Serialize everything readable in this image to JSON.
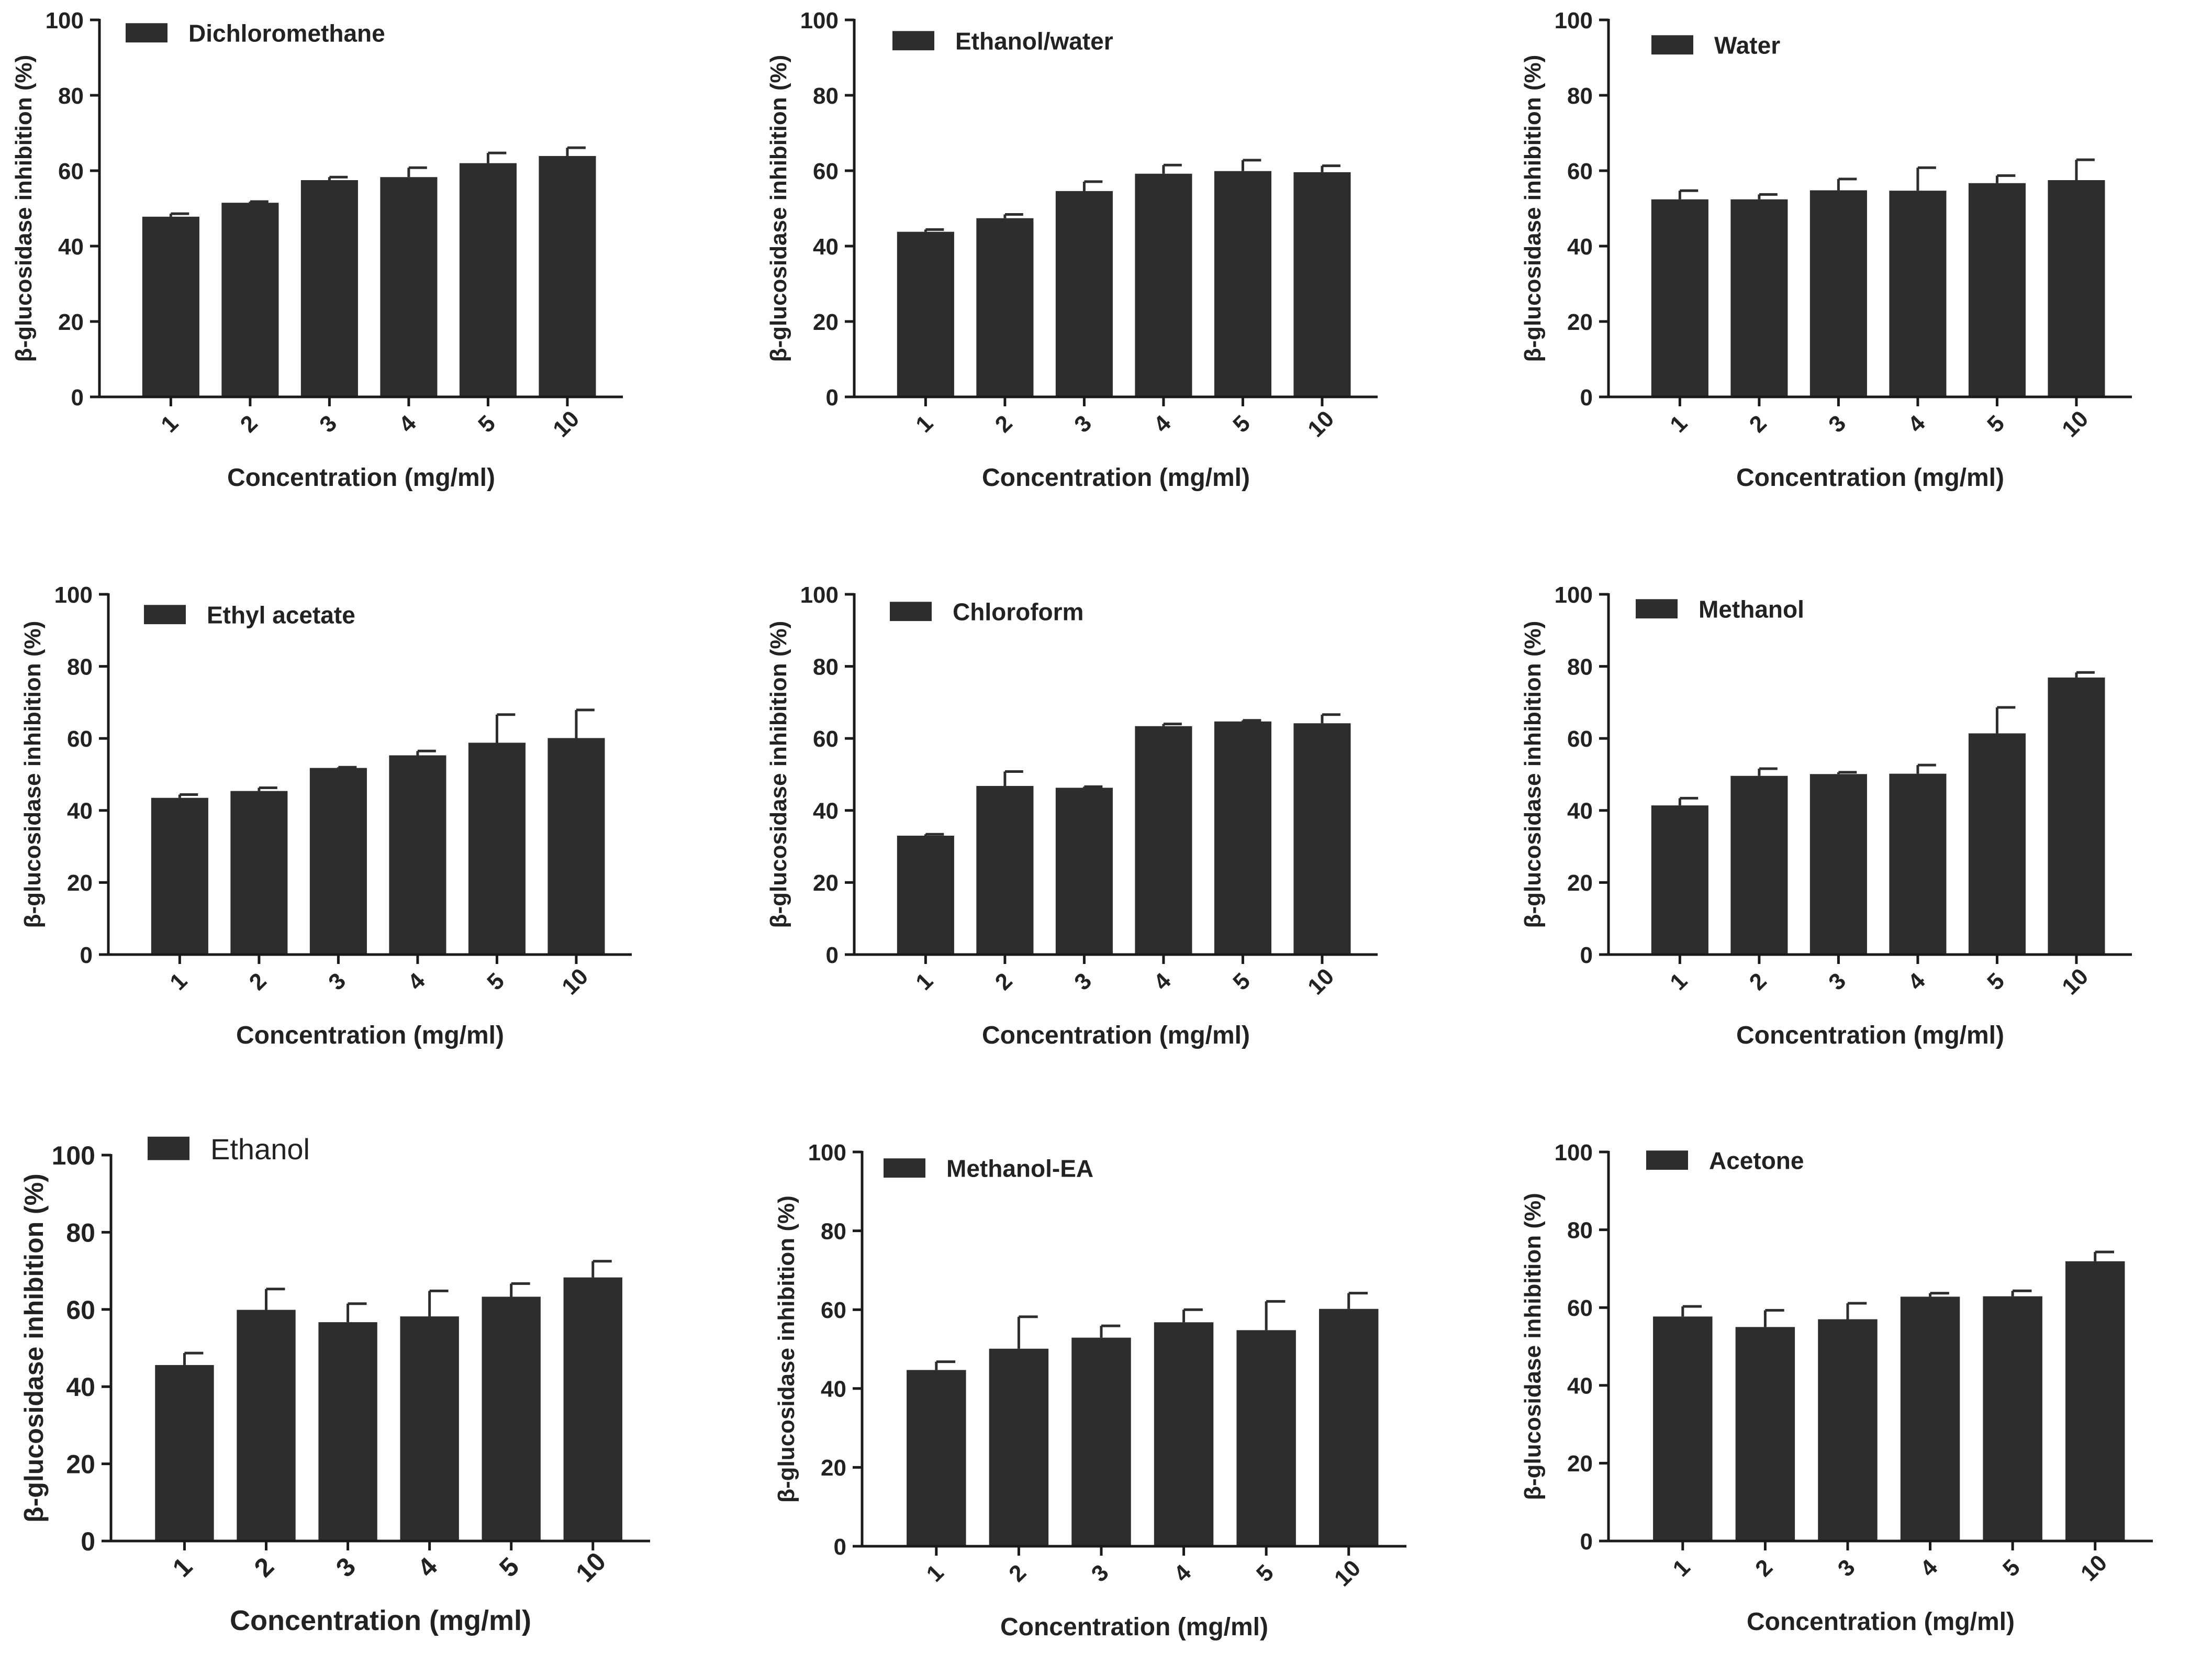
{
  "colors": {
    "bar": "#2d2d2d",
    "axis": "#1a1a1a",
    "text": "#222222",
    "background": "#ffffff"
  },
  "chart_data": [
    {
      "type": "bar",
      "legend": "Dichloromethane",
      "categories": [
        "1",
        "2",
        "3",
        "4",
        "5",
        "10"
      ],
      "values": [
        47.8,
        51.5,
        57.5,
        58.3,
        62.0,
        63.9
      ],
      "errors": [
        0.8,
        0.3,
        0.8,
        2.5,
        2.7,
        2.2
      ],
      "xlabel": "Concentration (mg/ml)",
      "ylabel": "β-glucosidase inhibition (%)",
      "ylim": [
        0,
        100
      ],
      "yticks": [
        "0",
        "20",
        "40",
        "60",
        "80",
        "100"
      ]
    },
    {
      "type": "bar",
      "legend": "Ethanol/water",
      "categories": [
        "1",
        "2",
        "3",
        "4",
        "5",
        "10"
      ],
      "values": [
        43.8,
        47.4,
        54.6,
        59.2,
        59.9,
        59.6
      ],
      "errors": [
        0.6,
        1.0,
        2.5,
        2.3,
        2.9,
        1.7
      ],
      "xlabel": "Concentration (mg/ml)",
      "ylabel": "β-glucosidase inhibition (%)",
      "ylim": [
        0,
        100
      ],
      "yticks": [
        "0",
        "20",
        "40",
        "60",
        "80",
        "100"
      ]
    },
    {
      "type": "bar",
      "legend": "Water",
      "categories": [
        "1",
        "2",
        "3",
        "4",
        "5",
        "10"
      ],
      "values": [
        52.4,
        52.4,
        54.8,
        54.7,
        56.7,
        57.5
      ],
      "errors": [
        2.3,
        1.3,
        3.0,
        6.1,
        2.0,
        5.4
      ],
      "xlabel": "Concentration (mg/ml)",
      "ylabel": "β-glucosidase inhibition (%)",
      "ylim": [
        0,
        100
      ],
      "yticks": [
        "0",
        "20",
        "40",
        "60",
        "80",
        "100"
      ]
    },
    {
      "type": "bar",
      "legend": "Ethyl acetate",
      "categories": [
        "1",
        "2",
        "3",
        "4",
        "5",
        "10"
      ],
      "values": [
        43.5,
        45.4,
        51.8,
        55.3,
        58.8,
        60.1
      ],
      "errors": [
        0.9,
        0.9,
        0.2,
        1.2,
        7.8,
        7.8
      ],
      "xlabel": "Concentration (mg/ml)",
      "ylabel": "β-glucosidase inhibition (%)",
      "ylim": [
        0,
        100
      ],
      "yticks": [
        "0",
        "20",
        "40",
        "60",
        "80",
        "100"
      ]
    },
    {
      "type": "bar",
      "legend": "Chloroform",
      "categories": [
        "1",
        "2",
        "3",
        "4",
        "5",
        "10"
      ],
      "values": [
        33.0,
        46.8,
        46.3,
        63.4,
        64.7,
        64.2
      ],
      "errors": [
        0.4,
        4.0,
        0.3,
        0.6,
        0.3,
        2.4
      ],
      "xlabel": "Concentration (mg/ml)",
      "ylabel": "β-glucosidase inhibition (%)",
      "ylim": [
        0,
        100
      ],
      "yticks": [
        "0",
        "20",
        "40",
        "60",
        "80",
        "100"
      ]
    },
    {
      "type": "bar",
      "legend": "Methanol",
      "categories": [
        "1",
        "2",
        "3",
        "4",
        "5",
        "10"
      ],
      "values": [
        41.4,
        49.6,
        50.1,
        50.2,
        61.4,
        76.9
      ],
      "errors": [
        2.0,
        2.0,
        0.5,
        2.4,
        7.2,
        1.4
      ],
      "xlabel": "Concentration (mg/ml)",
      "ylabel": "β-glucosidase inhibition (%)",
      "ylim": [
        0,
        100
      ],
      "yticks": [
        "0",
        "20",
        "40",
        "60",
        "80",
        "100"
      ]
    },
    {
      "type": "bar",
      "legend": "Ethanol",
      "categories": [
        "1",
        "2",
        "3",
        "4",
        "5",
        "10"
      ],
      "values": [
        45.6,
        59.9,
        56.7,
        58.2,
        63.3,
        68.3
      ],
      "errors": [
        3.1,
        5.4,
        4.8,
        6.6,
        3.4,
        4.2
      ],
      "xlabel": "Concentration (mg/ml)",
      "ylabel": "β-glucosidase inhibition (%)",
      "ylim": [
        0,
        100
      ],
      "yticks": [
        "0",
        "20",
        "40",
        "60",
        "80",
        "100"
      ]
    },
    {
      "type": "bar",
      "legend": "Methanol-EA",
      "categories": [
        "1",
        "2",
        "3",
        "4",
        "5",
        "10"
      ],
      "values": [
        44.7,
        50.1,
        52.9,
        56.8,
        54.8,
        60.2
      ],
      "errors": [
        2.1,
        8.1,
        3.0,
        3.2,
        7.3,
        4.0
      ],
      "xlabel": "Concentration (mg/ml)",
      "ylabel": "β-glucosidase inhibition (%)",
      "ylim": [
        0,
        100
      ],
      "yticks": [
        "0",
        "20",
        "40",
        "60",
        "80",
        "100"
      ]
    },
    {
      "type": "bar",
      "legend": "Acetone",
      "categories": [
        "1",
        "2",
        "3",
        "4",
        "5",
        "10"
      ],
      "values": [
        57.7,
        55.0,
        57.0,
        62.8,
        62.9,
        71.9
      ],
      "errors": [
        2.6,
        4.3,
        4.1,
        0.9,
        1.4,
        2.4
      ],
      "xlabel": "Concentration (mg/ml)",
      "ylabel": "β-glucosidase inhibition (%)",
      "ylim": [
        0,
        100
      ],
      "yticks": [
        "0",
        "20",
        "40",
        "60",
        "80",
        "100"
      ]
    }
  ]
}
